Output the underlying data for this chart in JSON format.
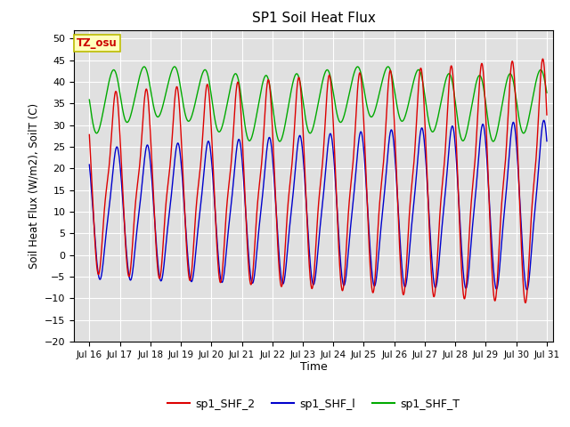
{
  "title": "SP1 Soil Heat Flux",
  "xlabel": "Time",
  "ylabel": "Soil Heat Flux (W/m2), SoilT (C)",
  "ylim": [
    -20,
    52
  ],
  "yticks": [
    -20,
    -15,
    -10,
    -5,
    0,
    5,
    10,
    15,
    20,
    25,
    30,
    35,
    40,
    45,
    50
  ],
  "xtick_labels": [
    "Jul 16",
    "Jul 17",
    "Jul 18",
    "Jul 19",
    "Jul 20",
    "Jul 21",
    "Jul 22",
    "Jul 23",
    "Jul 24",
    "Jul 25",
    "Jul 26",
    "Jul 27",
    "Jul 28",
    "Jul 29",
    "Jul 30",
    "Jul 31"
  ],
  "xtick_positions": [
    16,
    17,
    18,
    19,
    20,
    21,
    22,
    23,
    24,
    25,
    26,
    27,
    28,
    29,
    30,
    31
  ],
  "color_shf2": "#dd0000",
  "color_shf1": "#0000cc",
  "color_shft": "#00aa00",
  "bg_color": "#e0e0e0",
  "legend_labels": [
    "sp1_SHF_2",
    "sp1_SHF_l",
    "sp1_SHF_T"
  ],
  "tz_label": "TZ_osu",
  "tz_box_facecolor": "#ffffbb",
  "tz_box_edgecolor": "#bbbb00",
  "xlim_left": 15.5,
  "xlim_right": 31.2
}
